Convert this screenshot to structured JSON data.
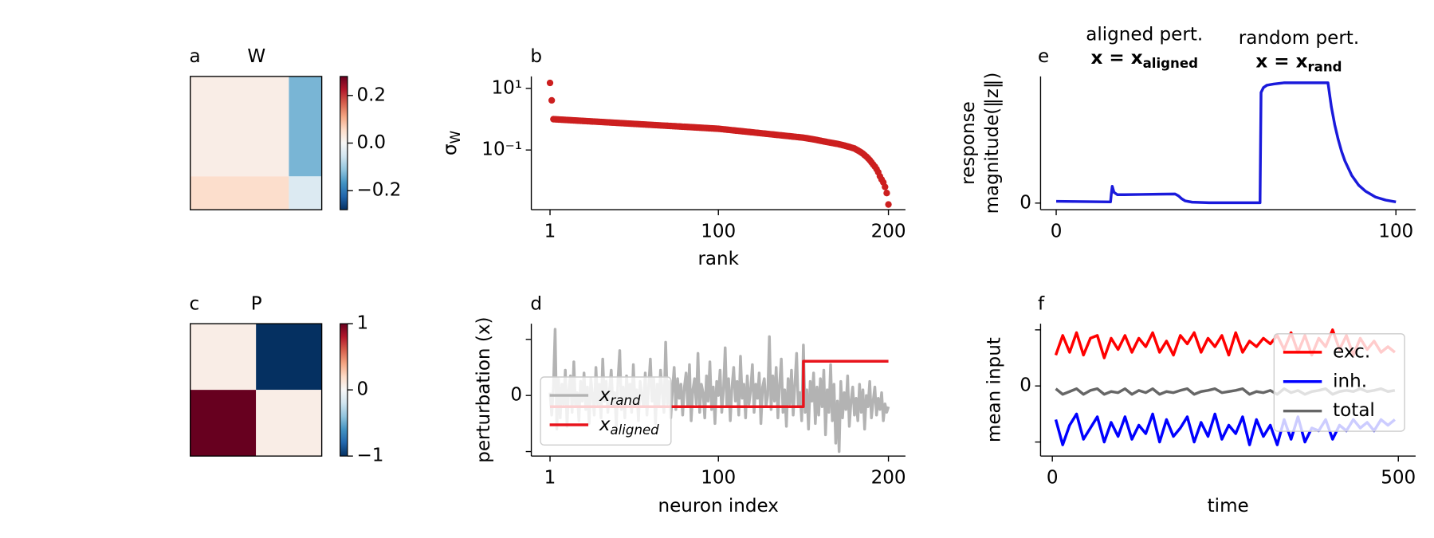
{
  "chart_data": [
    {
      "type": "heatmap",
      "label": "a",
      "title": "W",
      "edges": [
        0,
        150,
        200
      ],
      "matrix": [
        [
          0.02,
          -0.13
        ],
        [
          0.05,
          -0.04
        ]
      ],
      "cmap": "RdBu_r",
      "clim": [
        -0.28,
        0.28
      ],
      "cticks": [
        {
          "value": 0.2,
          "label": "0.2"
        },
        {
          "value": 0,
          "label": "0.0"
        },
        {
          "value": -0.2,
          "label": "−0.2"
        }
      ]
    },
    {
      "type": "heatmap",
      "label": "c",
      "title": "P",
      "edges": [
        0,
        100,
        200
      ],
      "matrix": [
        [
          0.07,
          -1
        ],
        [
          1,
          0.07
        ]
      ],
      "cmap": "RdBu_r",
      "clim": [
        -1,
        1
      ],
      "cticks": [
        1,
        0,
        {
          "value": -1,
          "label": "−1"
        }
      ]
    },
    {
      "type": "scatter",
      "label": "b",
      "xlabel": "rank",
      "ylabel": "σ_W",
      "color": "#cc1f1f",
      "x": [
        1,
        2,
        3,
        4,
        5,
        6,
        7,
        8,
        9,
        10,
        11,
        12,
        13,
        14,
        15,
        16,
        17,
        18,
        19,
        20,
        21,
        22,
        23,
        24,
        25,
        26,
        27,
        28,
        29,
        30,
        31,
        32,
        33,
        34,
        35,
        36,
        37,
        38,
        39,
        40,
        41,
        42,
        43,
        44,
        45,
        46,
        47,
        48,
        49,
        50,
        51,
        52,
        53,
        54,
        55,
        56,
        57,
        58,
        59,
        60,
        61,
        62,
        63,
        64,
        65,
        66,
        67,
        68,
        69,
        70,
        71,
        72,
        73,
        74,
        75,
        76,
        77,
        78,
        79,
        80,
        81,
        82,
        83,
        84,
        85,
        86,
        87,
        88,
        89,
        90,
        91,
        92,
        93,
        94,
        95,
        96,
        97,
        98,
        99,
        100,
        101,
        102,
        103,
        104,
        105,
        106,
        107,
        108,
        109,
        110,
        111,
        112,
        113,
        114,
        115,
        116,
        117,
        118,
        119,
        120,
        121,
        122,
        123,
        124,
        125,
        126,
        127,
        128,
        129,
        130,
        131,
        132,
        133,
        134,
        135,
        136,
        137,
        138,
        139,
        140,
        141,
        142,
        143,
        144,
        145,
        146,
        147,
        148,
        149,
        150,
        151,
        152,
        153,
        154,
        155,
        156,
        157,
        158,
        159,
        160,
        161,
        162,
        163,
        164,
        165,
        166,
        167,
        168,
        169,
        170,
        171,
        172,
        173,
        174,
        175,
        176,
        177,
        178,
        179,
        180,
        181,
        182,
        183,
        184,
        185,
        186,
        187,
        188,
        189,
        190,
        191,
        192,
        193,
        194,
        195,
        196,
        197,
        198,
        199,
        200
      ],
      "values": [
        15.1,
        4.1,
        1.0,
        0.993,
        0.986,
        0.979,
        0.971,
        0.964,
        0.957,
        0.95,
        0.943,
        0.936,
        0.929,
        0.922,
        0.915,
        0.909,
        0.902,
        0.895,
        0.889,
        0.882,
        0.876,
        0.87,
        0.863,
        0.857,
        0.85,
        0.844,
        0.838,
        0.832,
        0.826,
        0.82,
        0.814,
        0.808,
        0.802,
        0.796,
        0.79,
        0.785,
        0.779,
        0.773,
        0.768,
        0.762,
        0.756,
        0.751,
        0.745,
        0.74,
        0.734,
        0.729,
        0.724,
        0.718,
        0.713,
        0.708,
        0.703,
        0.697,
        0.692,
        0.687,
        0.682,
        0.677,
        0.672,
        0.667,
        0.662,
        0.657,
        0.653,
        0.648,
        0.643,
        0.638,
        0.634,
        0.629,
        0.624,
        0.62,
        0.615,
        0.611,
        0.606,
        0.602,
        0.597,
        0.593,
        0.589,
        0.584,
        0.58,
        0.576,
        0.571,
        0.567,
        0.563,
        0.559,
        0.555,
        0.551,
        0.547,
        0.543,
        0.539,
        0.535,
        0.531,
        0.527,
        0.523,
        0.519,
        0.515,
        0.512,
        0.508,
        0.504,
        0.5,
        0.497,
        0.493,
        0.49,
        0.483,
        0.477,
        0.47,
        0.464,
        0.458,
        0.452,
        0.446,
        0.44,
        0.434,
        0.428,
        0.423,
        0.417,
        0.412,
        0.406,
        0.401,
        0.395,
        0.39,
        0.385,
        0.38,
        0.375,
        0.37,
        0.365,
        0.36,
        0.356,
        0.351,
        0.346,
        0.342,
        0.337,
        0.333,
        0.328,
        0.324,
        0.32,
        0.315,
        0.311,
        0.307,
        0.303,
        0.299,
        0.295,
        0.291,
        0.287,
        0.283,
        0.28,
        0.276,
        0.272,
        0.269,
        0.265,
        0.262,
        0.258,
        0.255,
        0.251,
        0.246,
        0.241,
        0.236,
        0.231,
        0.226,
        0.221,
        0.216,
        0.211,
        0.205,
        0.2,
        0.195,
        0.19,
        0.186,
        0.181,
        0.177,
        0.173,
        0.169,
        0.165,
        0.161,
        0.158,
        0.153,
        0.149,
        0.144,
        0.14,
        0.135,
        0.13,
        0.126,
        0.121,
        0.116,
        0.112,
        0.104,
        0.097,
        0.09,
        0.083,
        0.076,
        0.068,
        0.061,
        0.054,
        0.047,
        0.04,
        0.034,
        0.029,
        0.024,
        0.019,
        0.014,
        0.011,
        0.0089,
        0.0063,
        0.004,
        0.0017
      ],
      "xlim": [
        -10,
        210
      ],
      "xticks": [
        1,
        100,
        200
      ],
      "yscale": "log",
      "ylim": [
        0.00115,
        24.5
      ],
      "yticks": [
        {
          "value": 10,
          "label": "10¹"
        },
        {
          "value": 0.1,
          "label": "10⁻¹"
        }
      ]
    },
    {
      "type": "line",
      "label": "d",
      "xlabel": "neuron index",
      "ylabel": "perturbation (x)",
      "legend": "lower left",
      "x": [
        1,
        2,
        3,
        4,
        5,
        6,
        7,
        8,
        9,
        10,
        11,
        12,
        13,
        14,
        15,
        16,
        17,
        18,
        19,
        20,
        21,
        22,
        23,
        24,
        25,
        26,
        27,
        28,
        29,
        30,
        31,
        32,
        33,
        34,
        35,
        36,
        37,
        38,
        39,
        40,
        41,
        42,
        43,
        44,
        45,
        46,
        47,
        48,
        49,
        50,
        51,
        52,
        53,
        54,
        55,
        56,
        57,
        58,
        59,
        60,
        61,
        62,
        63,
        64,
        65,
        66,
        67,
        68,
        69,
        70,
        71,
        72,
        73,
        74,
        75,
        76,
        77,
        78,
        79,
        80,
        81,
        82,
        83,
        84,
        85,
        86,
        87,
        88,
        89,
        90,
        91,
        92,
        93,
        94,
        95,
        96,
        97,
        98,
        99,
        100,
        101,
        102,
        103,
        104,
        105,
        106,
        107,
        108,
        109,
        110,
        111,
        112,
        113,
        114,
        115,
        116,
        117,
        118,
        119,
        120,
        121,
        122,
        123,
        124,
        125,
        126,
        127,
        128,
        129,
        130,
        131,
        132,
        133,
        134,
        135,
        136,
        137,
        138,
        139,
        140,
        141,
        142,
        143,
        144,
        145,
        146,
        147,
        148,
        149,
        150,
        151,
        152,
        153,
        154,
        155,
        156,
        157,
        158,
        159,
        160,
        161,
        162,
        163,
        164,
        165,
        166,
        167,
        168,
        169,
        170,
        171,
        172,
        173,
        174,
        175,
        176,
        177,
        178,
        179,
        180,
        181,
        182,
        183,
        184,
        185,
        186,
        187,
        188,
        189,
        190,
        191,
        192,
        193,
        194,
        195,
        196,
        197,
        198,
        199,
        200
      ],
      "series": [
        {
          "name": "x_rand",
          "color": "#b3b3b3",
          "values": [
            0.05,
            -0.35,
            0.15,
            1.18,
            -0.6,
            0.3,
            -0.4,
            0.2,
            -0.15,
            0.45,
            -0.55,
            0.1,
            0.35,
            -0.3,
            0.6,
            -0.2,
            0.05,
            -0.45,
            0.25,
            -0.1,
            0.4,
            -0.25,
            0.15,
            -0.5,
            0.3,
            0.0,
            -0.35,
            0.5,
            -0.15,
            0.2,
            -0.4,
            0.65,
            -0.1,
            0.25,
            -0.3,
            0.1,
            0.45,
            -0.2,
            0.05,
            -0.55,
            0.3,
            0.8,
            -0.25,
            0.15,
            -0.4,
            0.35,
            -0.05,
            0.2,
            -0.3,
            0.55,
            -0.15,
            0.1,
            -0.45,
            0.25,
            0.0,
            -0.2,
            0.4,
            -0.35,
            0.15,
            0.65,
            -0.1,
            0.3,
            -0.5,
            0.2,
            -0.2,
            0.45,
            0.05,
            -0.3,
            0.95,
            -0.15,
            0.25,
            -0.4,
            0.1,
            0.5,
            -0.25,
            0.3,
            -0.05,
            0.2,
            -0.35,
            0.15,
            0.4,
            -0.2,
            0.55,
            -0.45,
            0.1,
            0.3,
            -0.15,
            0.75,
            -0.3,
            0.2,
            0.05,
            -0.4,
            0.35,
            -0.1,
            0.6,
            -0.25,
            0.15,
            -0.5,
            0.25,
            0.0,
            0.45,
            -0.3,
            0.1,
            0.85,
            -0.2,
            0.3,
            -0.45,
            0.15,
            0.5,
            -0.1,
            0.25,
            -0.35,
            0.7,
            -0.05,
            0.2,
            -0.4,
            0.35,
            -0.15,
            0.1,
            0.55,
            -0.3,
            0.2,
            -0.05,
            0.4,
            -0.5,
            0.15,
            0.3,
            -0.2,
            0.0,
            1.05,
            -0.25,
            0.35,
            -0.1,
            0.5,
            -0.4,
            0.2,
            0.65,
            -0.3,
            0.1,
            -0.55,
            0.3,
            -0.15,
            0.45,
            -0.35,
            0.2,
            0.75,
            -0.2,
            0.05,
            -0.45,
            0.9,
            -0.3,
            0.1,
            -0.6,
            0.25,
            -0.1,
            0.4,
            -0.5,
            0.15,
            -0.35,
            0.3,
            -0.2,
            0.45,
            -0.7,
            0.1,
            -0.3,
            0.55,
            -0.45,
            0.2,
            -0.85,
            -0.1,
            -1.0,
            0.25,
            -0.4,
            0.05,
            -0.25,
            0.35,
            -0.55,
            -0.1,
            0.15,
            -0.35,
            -0.05,
            -0.45,
            0.2,
            -0.3,
            0.1,
            -0.6,
            0.0,
            -0.2,
            0.25,
            -0.4,
            -0.1,
            0.15,
            -0.35,
            -0.05,
            -0.25,
            0.05,
            -0.45,
            -0.15,
            -0.3,
            -0.2
          ]
        },
        {
          "name": "x_aligned",
          "color": "#e8141c",
          "x": [
            1,
            150,
            150,
            200
          ],
          "values": [
            -0.2,
            -0.2,
            0.61,
            0.61
          ]
        }
      ],
      "xlim": [
        -10,
        210
      ],
      "xticks": [
        1,
        100,
        200
      ],
      "ylim": [
        -1.08,
        1.28
      ],
      "yticks": [
        {
          "value": -1,
          "label": null
        },
        0,
        {
          "value": 1,
          "label": null
        }
      ]
    },
    {
      "type": "line",
      "label": "e",
      "ylabel": [
        "response",
        "magnitude(‖z‖)"
      ],
      "annotations": [
        [
          "aligned pert.",
          "x = x_aligned"
        ],
        [
          "random pert.",
          "x = x_rand"
        ]
      ],
      "x": [
        0,
        16,
        16.2,
        16.5,
        17,
        18,
        20,
        25,
        30,
        35,
        36,
        37,
        38,
        40,
        45,
        60,
        60.3,
        61,
        62,
        64,
        67,
        70,
        80,
        81,
        82,
        83,
        84,
        85,
        87,
        89,
        91,
        94,
        97,
        100
      ],
      "series": [
        {
          "color": "#1a1adb",
          "values": [
            0.015,
            0.01,
            0.07,
            0.14,
            0.09,
            0.07,
            0.07,
            0.072,
            0.074,
            0.076,
            0.06,
            0.035,
            0.018,
            0.008,
            0.003,
            0.003,
            0.92,
            0.96,
            0.98,
            0.99,
            1.0,
            1.0,
            1.0,
            0.8,
            0.65,
            0.53,
            0.43,
            0.35,
            0.23,
            0.15,
            0.1,
            0.05,
            0.025,
            0.01
          ]
        }
      ],
      "xlim": [
        -4.6,
        105.8
      ],
      "xticks": [
        0,
        100
      ],
      "ylim": [
        -0.055,
        1.053
      ],
      "yticks": [
        0
      ]
    },
    {
      "type": "line",
      "label": "f",
      "xlabel": "time",
      "ylabel": "mean input",
      "legend": "upper right",
      "x": [
        5,
        15,
        25,
        35,
        45,
        55,
        65,
        75,
        85,
        95,
        105,
        115,
        125,
        135,
        145,
        155,
        165,
        175,
        185,
        195,
        205,
        215,
        225,
        235,
        245,
        255,
        265,
        275,
        285,
        295,
        305,
        315,
        325,
        335,
        345,
        355,
        365,
        375,
        385,
        395,
        405,
        415,
        425,
        435,
        445,
        455,
        465,
        475,
        485,
        495
      ],
      "series": [
        {
          "name": "exc.",
          "color": "#ff0000",
          "values": [
            0.55,
            0.9,
            0.6,
            0.95,
            0.55,
            0.85,
            0.9,
            0.5,
            0.85,
            0.65,
            0.9,
            0.6,
            0.85,
            0.7,
            0.95,
            0.6,
            0.8,
            0.55,
            0.9,
            0.75,
            0.95,
            0.6,
            0.85,
            0.7,
            0.9,
            0.55,
            0.95,
            0.6,
            0.8,
            0.7,
            0.85,
            0.75,
            0.9,
            0.65,
            0.95,
            0.6,
            0.9,
            0.55,
            0.85,
            0.7,
            1.0,
            0.65,
            0.9,
            0.55,
            0.85,
            0.65,
            0.8,
            0.6,
            0.7,
            0.6
          ]
        },
        {
          "name": "inh.",
          "color": "#0000ff",
          "values": [
            -0.6,
            -1.05,
            -0.7,
            -0.5,
            -0.95,
            -0.75,
            -0.55,
            -1.0,
            -0.65,
            -0.9,
            -0.55,
            -0.95,
            -0.7,
            -0.85,
            -0.5,
            -1.0,
            -0.6,
            -0.9,
            -0.75,
            -0.55,
            -1.0,
            -0.65,
            -0.9,
            -0.5,
            -0.95,
            -0.7,
            -0.85,
            -0.55,
            -1.05,
            -0.6,
            -0.9,
            -0.7,
            -1.05,
            -0.6,
            -0.95,
            -0.55,
            -1.0,
            -0.75,
            -0.8,
            -0.6,
            -0.95,
            -0.7,
            -0.8,
            -0.6,
            -0.75,
            -0.65,
            -0.8,
            -0.6,
            -0.7,
            -0.6
          ]
        },
        {
          "name": "total",
          "color": "#666666",
          "values": [
            -0.05,
            -0.15,
            -0.1,
            -0.05,
            -0.15,
            -0.08,
            -0.05,
            -0.15,
            -0.1,
            -0.12,
            -0.05,
            -0.15,
            -0.08,
            -0.12,
            -0.05,
            -0.15,
            -0.1,
            -0.12,
            -0.08,
            -0.05,
            -0.15,
            -0.1,
            -0.08,
            -0.05,
            -0.12,
            -0.1,
            -0.08,
            -0.05,
            -0.15,
            -0.1,
            -0.12,
            -0.08,
            -0.15,
            -0.05,
            -0.12,
            -0.08,
            -0.15,
            -0.1,
            -0.08,
            -0.05,
            -0.15,
            -0.1,
            -0.08,
            -0.1,
            -0.05,
            -0.1,
            -0.08,
            -0.05,
            -0.1,
            -0.08
          ]
        }
      ],
      "xlim": [
        -17,
        525
      ],
      "xticks": [
        0,
        500
      ],
      "ylim": [
        -1.25,
        1.11
      ],
      "yticks": [
        {
          "value": -1,
          "label": null
        },
        0,
        {
          "value": 1,
          "label": null
        }
      ]
    }
  ]
}
